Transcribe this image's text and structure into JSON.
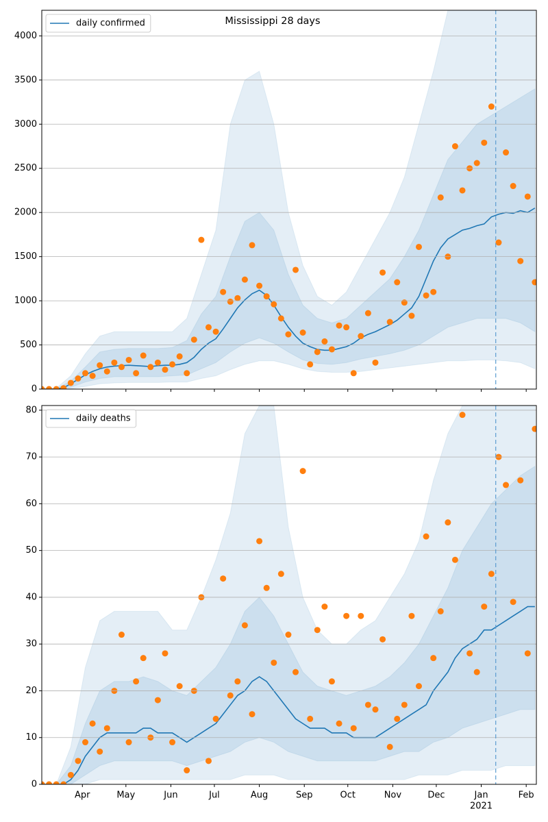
{
  "chart_data": [
    {
      "type": "line",
      "title": "Mississippi 28 days",
      "x": [
        0,
        5,
        10,
        15,
        20,
        25,
        30,
        35,
        40,
        45,
        50,
        55,
        60,
        65,
        70,
        75,
        80,
        85,
        90,
        95,
        100,
        105,
        110,
        115,
        120,
        125,
        130,
        135,
        140,
        145,
        150,
        155,
        160,
        165,
        170,
        175,
        180,
        185,
        190,
        195,
        200,
        205,
        210,
        215,
        220,
        225,
        230,
        235,
        240,
        245,
        250,
        255,
        260,
        265,
        270,
        275,
        280,
        285,
        290,
        295,
        300,
        305,
        310,
        315,
        320,
        325,
        330,
        335,
        340
      ],
      "series": [
        {
          "name": "daily confirmed",
          "color": "#1f77b4",
          "values": [
            0,
            0,
            2,
            15,
            60,
            110,
            160,
            200,
            230,
            250,
            260,
            265,
            270,
            265,
            260,
            255,
            265,
            270,
            270,
            280,
            300,
            360,
            450,
            520,
            570,
            680,
            800,
            920,
            1010,
            1080,
            1120,
            1060,
            950,
            820,
            700,
            600,
            520,
            480,
            450,
            440,
            440,
            460,
            480,
            520,
            580,
            620,
            650,
            690,
            730,
            780,
            850,
            920,
            1050,
            1250,
            1450,
            1600,
            1700,
            1750,
            1800,
            1820,
            1850,
            1870,
            1950,
            1980,
            2000,
            1990,
            2020,
            2000,
            2050
          ]
        }
      ],
      "points": {
        "color": "#ff7f0e",
        "values": [
          0,
          0,
          0,
          10,
          70,
          120,
          180,
          150,
          270,
          200,
          300,
          250,
          330,
          180,
          380,
          250,
          300,
          220,
          280,
          370,
          180,
          560,
          1690,
          700,
          650,
          1100,
          990,
          1030,
          1240,
          1630,
          1170,
          1050,
          960,
          800,
          620,
          1350,
          640,
          280,
          420,
          540,
          450,
          720,
          700,
          180,
          600,
          860,
          300,
          1320,
          760,
          1210,
          980,
          830,
          1610,
          1060,
          1100,
          2170,
          1500,
          2750,
          2250,
          2500,
          2560,
          2790,
          3200,
          1660,
          2680,
          2300,
          1450,
          2180,
          1210
        ]
      },
      "band_x": [
        0,
        10,
        20,
        30,
        40,
        50,
        60,
        70,
        80,
        90,
        100,
        110,
        120,
        130,
        140,
        150,
        160,
        170,
        180,
        190,
        200,
        210,
        220,
        230,
        240,
        250,
        260,
        270,
        280,
        290,
        300,
        310,
        320,
        330,
        340
      ],
      "bands": [
        {
          "upper": [
            0,
            10,
            150,
            400,
            600,
            650,
            650,
            650,
            650,
            650,
            800,
            1300,
            1800,
            3000,
            3500,
            3600,
            3000,
            2000,
            1400,
            1050,
            950,
            1100,
            1400,
            1700,
            2000,
            2400,
            3000,
            3600,
            4290,
            4290,
            4290,
            4290,
            4290,
            4290,
            4290
          ],
          "lower": [
            0,
            0,
            5,
            30,
            60,
            70,
            75,
            75,
            75,
            80,
            80,
            120,
            150,
            220,
            280,
            320,
            320,
            280,
            230,
            200,
            190,
            190,
            200,
            220,
            240,
            260,
            280,
            300,
            320,
            320,
            330,
            330,
            320,
            300,
            230
          ]
        },
        {
          "upper": [
            0,
            5,
            90,
            250,
            420,
            450,
            460,
            460,
            460,
            470,
            550,
            850,
            1050,
            1500,
            1900,
            2000,
            1800,
            1300,
            950,
            800,
            750,
            800,
            950,
            1100,
            1250,
            1500,
            1800,
            2200,
            2600,
            2800,
            3000,
            3100,
            3200,
            3300,
            3400
          ],
          "lower": [
            0,
            0,
            20,
            80,
            120,
            140,
            140,
            140,
            140,
            150,
            160,
            230,
            300,
            420,
            520,
            580,
            520,
            420,
            330,
            290,
            280,
            300,
            340,
            370,
            400,
            440,
            500,
            600,
            700,
            750,
            800,
            800,
            800,
            750,
            650
          ]
        }
      ],
      "band_color": "#1f77b4",
      "vline_x": 313,
      "xlim": [
        0,
        341
      ],
      "ylim": [
        0,
        4290
      ],
      "yticks": [
        0,
        500,
        1000,
        1500,
        2000,
        2500,
        3000,
        3500,
        4000
      ],
      "grid": true,
      "legend": "upper left"
    },
    {
      "type": "line",
      "x": [
        0,
        5,
        10,
        15,
        20,
        25,
        30,
        35,
        40,
        45,
        50,
        55,
        60,
        65,
        70,
        75,
        80,
        85,
        90,
        95,
        100,
        105,
        110,
        115,
        120,
        125,
        130,
        135,
        140,
        145,
        150,
        155,
        160,
        165,
        170,
        175,
        180,
        185,
        190,
        195,
        200,
        205,
        210,
        215,
        220,
        225,
        230,
        235,
        240,
        245,
        250,
        255,
        260,
        265,
        270,
        275,
        280,
        285,
        290,
        295,
        300,
        305,
        310,
        315,
        320,
        325,
        330,
        335,
        340
      ],
      "series": [
        {
          "name": "daily deaths",
          "color": "#1f77b4",
          "values": [
            0,
            0,
            0,
            0,
            1,
            3,
            6,
            8,
            10,
            11,
            11,
            11,
            11,
            11,
            12,
            12,
            11,
            11,
            11,
            10,
            9,
            10,
            11,
            12,
            13,
            15,
            17,
            19,
            20,
            22,
            23,
            22,
            20,
            18,
            16,
            14,
            13,
            12,
            12,
            12,
            11,
            11,
            11,
            10,
            10,
            10,
            10,
            11,
            12,
            13,
            14,
            15,
            16,
            17,
            20,
            22,
            24,
            27,
            29,
            30,
            31,
            33,
            33,
            34,
            35,
            36,
            37,
            38,
            38
          ]
        }
      ],
      "points": {
        "color": "#ff7f0e",
        "values": [
          0,
          0,
          0,
          0,
          2,
          5,
          9,
          13,
          7,
          12,
          20,
          32,
          9,
          22,
          27,
          10,
          18,
          28,
          9,
          21,
          3,
          20,
          40,
          5,
          14,
          44,
          19,
          22,
          34,
          15,
          52,
          42,
          26,
          45,
          32,
          24,
          67,
          14,
          33,
          38,
          22,
          13,
          36,
          12,
          36,
          17,
          16,
          31,
          8,
          14,
          17,
          36,
          21,
          53,
          27,
          37,
          56,
          48,
          79,
          28,
          24,
          38,
          45,
          70,
          64,
          39,
          65,
          28,
          76
        ]
      },
      "band_x": [
        0,
        10,
        20,
        30,
        40,
        50,
        60,
        70,
        80,
        90,
        100,
        110,
        120,
        130,
        140,
        150,
        160,
        170,
        180,
        190,
        200,
        210,
        220,
        230,
        240,
        250,
        260,
        270,
        280,
        290,
        300,
        310,
        320,
        330,
        340
      ],
      "bands": [
        {
          "upper": [
            0,
            0,
            8,
            25,
            35,
            37,
            37,
            37,
            37,
            33,
            33,
            40,
            48,
            58,
            75,
            81,
            81,
            55,
            40,
            33,
            30,
            30,
            33,
            35,
            40,
            45,
            52,
            65,
            75,
            81,
            81,
            81,
            81,
            81,
            81
          ],
          "lower": [
            0,
            0,
            0,
            0,
            1,
            1,
            1,
            1,
            1,
            1,
            1,
            1,
            1,
            1,
            2,
            2,
            2,
            1,
            1,
            1,
            1,
            1,
            1,
            1,
            1,
            1,
            2,
            2,
            2,
            3,
            3,
            3,
            4,
            4,
            4
          ]
        },
        {
          "upper": [
            0,
            0,
            4,
            13,
            20,
            22,
            22,
            23,
            22,
            20,
            19,
            22,
            25,
            30,
            37,
            40,
            36,
            30,
            24,
            21,
            20,
            19,
            20,
            21,
            23,
            26,
            30,
            36,
            42,
            50,
            55,
            60,
            63,
            66,
            68
          ],
          "lower": [
            0,
            0,
            0,
            2,
            4,
            5,
            5,
            5,
            5,
            5,
            4,
            5,
            6,
            7,
            9,
            10,
            9,
            7,
            6,
            5,
            5,
            5,
            5,
            5,
            6,
            7,
            7,
            9,
            10,
            12,
            13,
            14,
            15,
            16,
            16
          ]
        }
      ],
      "band_color": "#1f77b4",
      "vline_x": 313,
      "xlim": [
        0,
        341
      ],
      "xticks": [
        {
          "value": 28,
          "label": "Apr"
        },
        {
          "value": 58,
          "label": "May"
        },
        {
          "value": 89,
          "label": "Jun"
        },
        {
          "value": 119,
          "label": "Jul"
        },
        {
          "value": 150,
          "label": "Aug"
        },
        {
          "value": 181,
          "label": "Sep"
        },
        {
          "value": 211,
          "label": "Oct"
        },
        {
          "value": 242,
          "label": "Nov"
        },
        {
          "value": 272,
          "label": "Dec"
        },
        {
          "value": 303,
          "label": "Jan"
        },
        {
          "value": 334,
          "label": "Feb"
        }
      ],
      "year_label": "2021",
      "ylim": [
        0,
        81
      ],
      "yticks": [
        0,
        10,
        20,
        30,
        40,
        50,
        60,
        70,
        80
      ],
      "grid": true,
      "legend": "upper left"
    }
  ]
}
